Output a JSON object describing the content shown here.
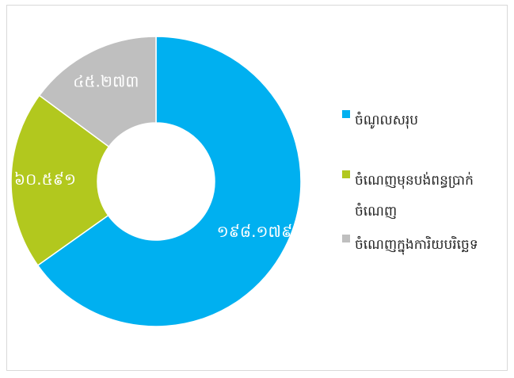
{
  "chart_data": {
    "type": "donut",
    "categories": [
      "ចំណូលសរុប",
      "ចំណេញមុនបង់ពន្ធប្រាក់ចំណេញ",
      "ចំណេញក្នុងការិយបរិច្ឆេទ"
    ],
    "values": [
      198.179,
      60.591,
      45.273
    ],
    "value_labels": [
      "១៩៨.១៧៩",
      "៦០.៥៩១",
      "៤៥.២៧៣"
    ],
    "colors": [
      "#00b0f0",
      "#b2c81e",
      "#bfbfbf"
    ],
    "legend": "right"
  }
}
